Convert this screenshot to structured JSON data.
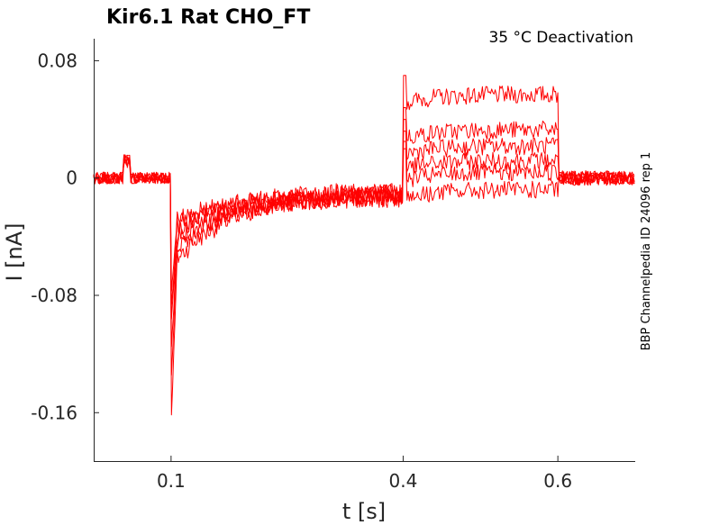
{
  "chart_data": {
    "type": "line",
    "title": "Kir6.1  Rat  CHO_FT",
    "subtitle": "35 °C  Deactivation",
    "xlabel": "t [s]",
    "ylabel": "I [nA]",
    "side_label": "BBP Channelpedia ID 24096 rep 1",
    "xlim": [
      0.0,
      0.7
    ],
    "ylim": [
      -0.193,
      0.095
    ],
    "xticks": [
      0.1,
      0.4,
      0.6
    ],
    "xtick_labels": [
      "0.1",
      "0.4",
      "0.6"
    ],
    "yticks": [
      0.08,
      0,
      -0.08,
      -0.16
    ],
    "ytick_labels": [
      "0.08",
      "0",
      "-0.08",
      "-0.16"
    ],
    "grid": false,
    "legend": "none",
    "color": "#ff0000",
    "protocol_times": {
      "artifact_start": 0.038,
      "artifact_end": 0.048,
      "step_down": 0.1,
      "step_up": 0.4,
      "step_end": 0.6,
      "end": 0.7
    },
    "series": [
      {
        "baseline": 0.0,
        "artifact": 0.012,
        "peak": -0.168,
        "recovery_start": -0.06,
        "recovery_end": -0.01,
        "spike": 0.07,
        "step_level": 0.057,
        "post": 0.0
      },
      {
        "baseline": 0.0,
        "artifact": 0.014,
        "peak": -0.14,
        "recovery_start": -0.05,
        "recovery_end": -0.011,
        "spike": 0.048,
        "step_level": 0.033,
        "post": 0.0
      },
      {
        "baseline": 0.0,
        "artifact": 0.01,
        "peak": -0.12,
        "recovery_start": -0.045,
        "recovery_end": -0.012,
        "spike": 0.04,
        "step_level": 0.022,
        "post": 0.0
      },
      {
        "baseline": 0.0,
        "artifact": 0.012,
        "peak": -0.1,
        "recovery_start": -0.04,
        "recovery_end": -0.009,
        "spike": 0.032,
        "step_level": 0.012,
        "post": 0.0
      },
      {
        "baseline": 0.0,
        "artifact": 0.011,
        "peak": -0.09,
        "recovery_start": -0.035,
        "recovery_end": -0.01,
        "spike": 0.025,
        "step_level": 0.004,
        "post": 0.0
      },
      {
        "baseline": 0.0,
        "artifact": 0.013,
        "peak": -0.08,
        "recovery_start": -0.03,
        "recovery_end": -0.013,
        "spike": 0.02,
        "step_level": -0.008,
        "post": 0.0
      }
    ]
  }
}
